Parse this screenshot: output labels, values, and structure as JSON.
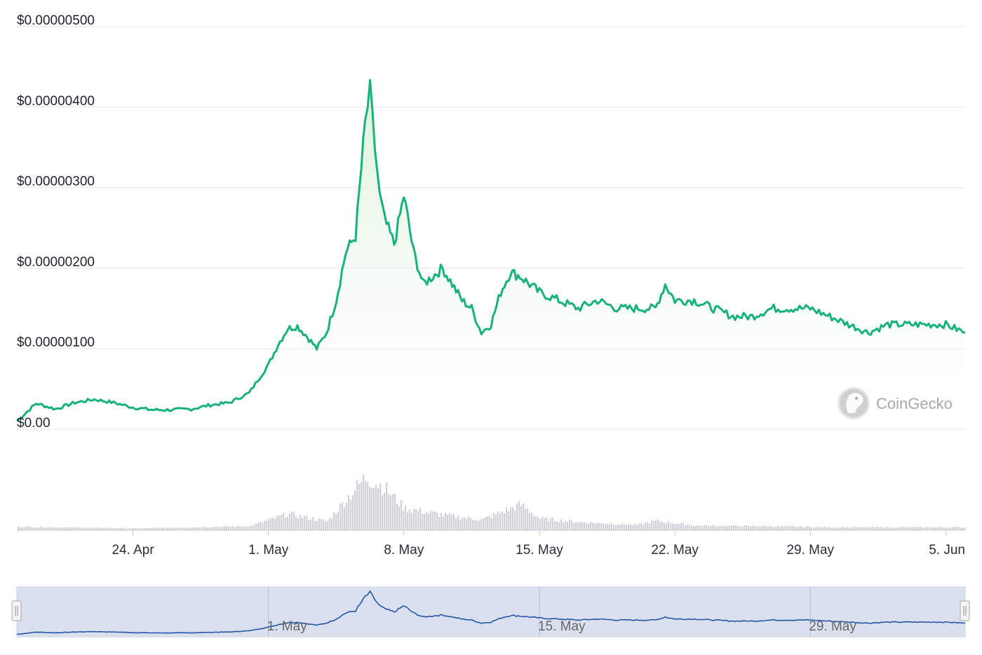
{
  "brand": {
    "name": "CoinGecko",
    "logo_icon": "gecko-logo-icon"
  },
  "colors": {
    "price_line": "#17b27a",
    "price_fill_top": "#d6f0d4",
    "volume_fill": "#cfd1d6",
    "navigator_fill": "#d3daec",
    "navigator_line": "#2456a6",
    "grid": "#e6e6e6"
  },
  "chart_data": [
    {
      "type": "area",
      "title": "",
      "xlabel": "",
      "ylabel": "",
      "grid": true,
      "y_ticks": [
        0,
        1e-06,
        2e-06,
        3e-06,
        4e-06,
        5e-06
      ],
      "y_tick_labels": [
        "$0.00",
        "$0.00000100",
        "$0.00000200",
        "$0.00000300",
        "$0.00000400",
        "$0.00000500"
      ],
      "ylim": [
        0,
        5e-06
      ],
      "x_tick_labels": [
        "24. Apr",
        "1. May",
        "8. May",
        "15. May",
        "22. May",
        "29. May",
        "5. Jun"
      ],
      "xlim": [
        "2023-04-18",
        "2023-06-06"
      ],
      "series": [
        {
          "x": [
            "2023-04-18",
            "2023-04-19",
            "2023-04-20",
            "2023-04-21",
            "2023-04-22",
            "2023-04-23",
            "2023-04-24",
            "2023-04-25",
            "2023-04-26",
            "2023-04-27",
            "2023-04-28",
            "2023-04-29",
            "2023-04-30",
            "2023-05-01",
            "2023-05-01T12:00",
            "2023-05-02",
            "2023-05-02T12:00",
            "2023-05-03",
            "2023-05-03T12:00",
            "2023-05-04",
            "2023-05-04T12:00",
            "2023-05-05",
            "2023-05-05T12:00",
            "2023-05-06",
            "2023-05-06T06:00",
            "2023-05-06T12:00",
            "2023-05-06T18:00",
            "2023-05-07",
            "2023-05-07T12:00",
            "2023-05-08",
            "2023-05-08T12:00",
            "2023-05-09",
            "2023-05-09T12:00",
            "2023-05-10",
            "2023-05-10T12:00",
            "2023-05-11",
            "2023-05-11T12:00",
            "2023-05-12",
            "2023-05-12T12:00",
            "2023-05-13",
            "2023-05-13T12:00",
            "2023-05-14",
            "2023-05-14T12:00",
            "2023-05-15",
            "2023-05-16",
            "2023-05-17",
            "2023-05-18",
            "2023-05-19",
            "2023-05-20",
            "2023-05-21",
            "2023-05-21T12:00",
            "2023-05-22",
            "2023-05-23",
            "2023-05-24",
            "2023-05-25",
            "2023-05-26",
            "2023-05-27",
            "2023-05-28",
            "2023-05-29",
            "2023-05-30",
            "2023-05-31",
            "2023-06-01",
            "2023-06-02",
            "2023-06-03",
            "2023-06-04",
            "2023-06-05",
            "2023-06-06"
          ],
          "values": [
            1e-07,
            3.2e-07,
            2.5e-07,
            3.3e-07,
            3.7e-07,
            3.3e-07,
            2.7e-07,
            2.4e-07,
            2.4e-07,
            2.5e-07,
            3e-07,
            3.3e-07,
            4.5e-07,
            8e-07,
            1.05e-06,
            1.25e-06,
            1.28e-06,
            1.15e-06,
            1e-06,
            1.2e-06,
            1.6e-06,
            2.2e-06,
            2.4e-06,
            3.8e-06,
            4.2e-06,
            3.5e-06,
            2.9e-06,
            2.6e-06,
            2.3e-06,
            2.9e-06,
            2.2e-06,
            1.8e-06,
            1.9e-06,
            2e-06,
            1.8e-06,
            1.6e-06,
            1.5e-06,
            1.2e-06,
            1.3e-06,
            1.7e-06,
            1.95e-06,
            1.9e-06,
            1.8e-06,
            1.7e-06,
            1.6e-06,
            1.5e-06,
            1.6e-06,
            1.5e-06,
            1.5e-06,
            1.5e-06,
            1.8e-06,
            1.6e-06,
            1.6e-06,
            1.5e-06,
            1.4e-06,
            1.4e-06,
            1.5e-06,
            1.5e-06,
            1.5e-06,
            1.4e-06,
            1.3e-06,
            1.2e-06,
            1.3e-06,
            1.3e-06,
            1.3e-06,
            1.3e-06,
            1.2e-06
          ]
        }
      ]
    },
    {
      "type": "bar",
      "title": "",
      "x_tick_labels": [],
      "series": [
        {
          "x": [
            "2023-04-18",
            "2023-04-24",
            "2023-04-30",
            "2023-05-02",
            "2023-05-04",
            "2023-05-06",
            "2023-05-07",
            "2023-05-08",
            "2023-05-10",
            "2023-05-12",
            "2023-05-14",
            "2023-05-15",
            "2023-05-17",
            "2023-05-20",
            "2023-05-21",
            "2023-05-23",
            "2023-05-26",
            "2023-05-30",
            "2023-06-06"
          ],
          "values": [
            6,
            3,
            7,
            28,
            15,
            92,
            72,
            38,
            26,
            18,
            44,
            20,
            14,
            9,
            16,
            8,
            7,
            5,
            5
          ]
        }
      ]
    },
    {
      "type": "area",
      "title": "",
      "x_tick_labels": [
        "1. May",
        "15. May",
        "29. May"
      ]
    }
  ]
}
